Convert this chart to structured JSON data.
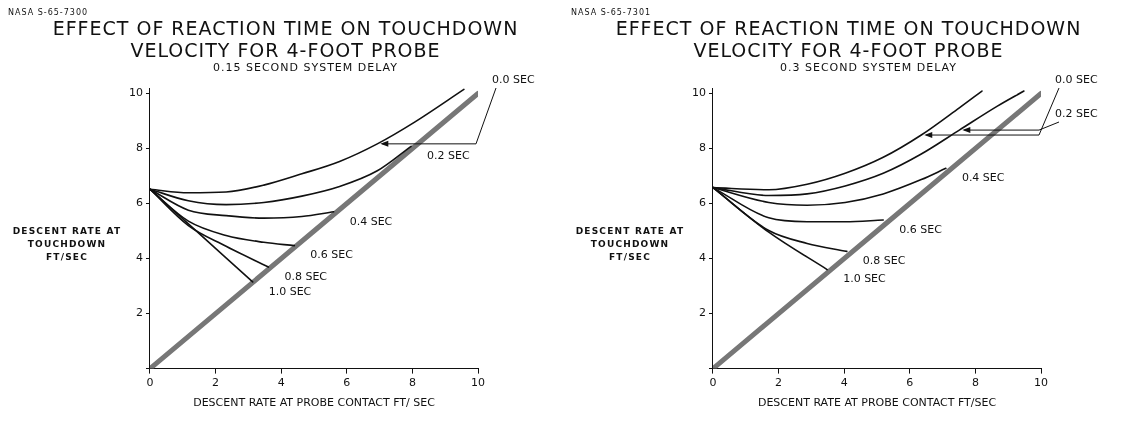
{
  "chart_data": [
    {
      "type": "line",
      "title": "EFFECT OF REACTION TIME ON TOUCHDOWN VELOCITY FOR 4-FOOT PROBE",
      "subtitle": "0.15 SECOND SYSTEM DELAY",
      "xlabel": "DESCENT RATE AT PROBE CONTACT FT/ SEC",
      "ylabel": "DESCENT RATE AT TOUCHDOWN FT/SEC",
      "annotations": [
        "NASA S-65-7300"
      ],
      "xlim": [
        0,
        10
      ],
      "ylim": [
        0,
        10.2
      ],
      "xticks": [
        0,
        2,
        4,
        6,
        8,
        10
      ],
      "yticks": [
        {
          "value": 0,
          "label": null
        },
        2,
        4,
        6,
        8,
        10
      ],
      "grid": false,
      "legend": false,
      "marker": "none",
      "line_style": "solid",
      "series": [
        {
          "name": "0.0 SEC",
          "color": "#111111",
          "x": [
            0,
            1.17,
            2.32,
            3.47,
            4.63,
            5.78,
            6.93,
            8.08,
            9.57
          ],
          "values": [
            6.52,
            6.39,
            6.42,
            6.67,
            7.08,
            7.53,
            8.17,
            8.97,
            10.15
          ]
        },
        {
          "name": "0.2 SEC",
          "color": "#111111",
          "x": [
            0,
            1.17,
            2.32,
            3.47,
            4.63,
            5.78,
            6.93,
            7.96
          ],
          "values": [
            6.52,
            6.1,
            5.96,
            6.04,
            6.27,
            6.62,
            7.19,
            8.08
          ]
        },
        {
          "name": "0.4 SEC",
          "color": "#111111",
          "x": [
            0,
            1.17,
            2.32,
            3.47,
            4.63,
            5.6
          ],
          "values": [
            6.52,
            5.76,
            5.56,
            5.47,
            5.53,
            5.7
          ]
        },
        {
          "name": "0.6 SEC",
          "color": "#111111",
          "x": [
            0,
            1.17,
            2.32,
            3.47,
            4.4
          ],
          "values": [
            6.52,
            5.36,
            4.84,
            4.59,
            4.47
          ]
        },
        {
          "name": "0.8 SEC",
          "color": "#111111",
          "x": [
            0,
            1.17,
            2.32,
            3.61
          ],
          "values": [
            6.52,
            5.2,
            4.45,
            3.69
          ]
        },
        {
          "name": "1.0 SEC",
          "color": "#111111",
          "x": [
            0,
            3.13
          ],
          "values": [
            6.52,
            3.15
          ]
        },
        {
          "color": "#777777",
          "x": [
            0,
            10
          ],
          "values": [
            0,
            10
          ]
        }
      ]
    },
    {
      "type": "line",
      "title": "EFFECT OF REACTION TIME ON TOUCHDOWN VELOCITY FOR 4-FOOT PROBE",
      "subtitle": "0.3 SECOND SYSTEM DELAY",
      "xlabel": "DESCENT RATE AT PROBE CONTACT FT/SEC",
      "ylabel": "DESCENT RATE AT TOUCHDOWN FT/SEC",
      "annotations": [
        "NASA S-65-7301"
      ],
      "xlim": [
        0,
        10
      ],
      "ylim": [
        0,
        10.2
      ],
      "xticks": [
        0,
        2,
        4,
        6,
        8,
        10
      ],
      "yticks": [
        {
          "value": 0,
          "label": null
        },
        2,
        4,
        6,
        8,
        10
      ],
      "grid": false,
      "legend": false,
      "marker": "none",
      "line_style": "solid",
      "series": [
        {
          "name": "0.0 SEC",
          "color": "#111111",
          "x": [
            0,
            1.7,
            2.87,
            4.03,
            5.19,
            6.35,
            7.51,
            8.2
          ],
          "values": [
            6.58,
            6.5,
            6.7,
            7.1,
            7.68,
            8.49,
            9.48,
            10.09
          ]
        },
        {
          "name": "0.2 SEC",
          "color": "#111111",
          "x": [
            0,
            1.7,
            2.87,
            4.03,
            5.19,
            6.35,
            7.51,
            8.67,
            9.48
          ],
          "values": [
            6.58,
            6.29,
            6.35,
            6.64,
            7.1,
            7.8,
            8.67,
            9.54,
            10.09
          ]
        },
        {
          "name": "0.4 SEC",
          "color": "#111111",
          "x": [
            0,
            1.7,
            2.87,
            4.03,
            5.19,
            6.35,
            7.1
          ],
          "values": [
            6.58,
            6.04,
            5.94,
            6.04,
            6.35,
            6.87,
            7.28
          ]
        },
        {
          "name": "0.6 SEC",
          "color": "#111111",
          "x": [
            0,
            1.7,
            2.87,
            4.03,
            5.19
          ],
          "values": [
            6.58,
            5.48,
            5.34,
            5.34,
            5.4
          ]
        },
        {
          "name": "0.8 SEC",
          "color": "#111111",
          "x": [
            0,
            1.7,
            2.87,
            4.08
          ],
          "values": [
            6.58,
            5.02,
            4.55,
            4.26
          ]
        },
        {
          "name": "1.0 SEC",
          "color": "#111111",
          "x": [
            0,
            1.7,
            3.48
          ],
          "values": [
            6.58,
            4.96,
            3.6
          ]
        },
        {
          "color": "#777777",
          "x": [
            0,
            10
          ],
          "values": [
            0,
            10
          ]
        }
      ]
    }
  ]
}
